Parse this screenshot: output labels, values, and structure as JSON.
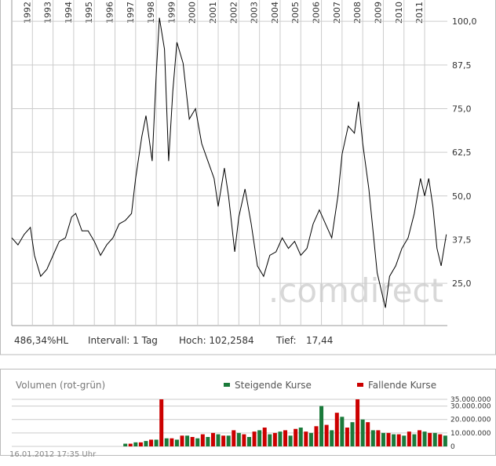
{
  "chart_data": [
    {
      "type": "line",
      "watermark": ".comdirect",
      "annotations": [
        "486,34%HL",
        "Intervall: 1 Tag",
        "Hoch: 102,2584",
        "Tief:",
        "17,44"
      ],
      "x": [
        1991.0,
        1991.3,
        1991.6,
        1991.9,
        1992.1,
        1992.4,
        1992.7,
        1993.0,
        1993.3,
        1993.6,
        1993.9,
        1994.1,
        1994.4,
        1994.7,
        1995.0,
        1995.3,
        1995.6,
        1995.9,
        1996.2,
        1996.5,
        1996.8,
        1997.0,
        1997.3,
        1997.5,
        1997.8,
        1998.0,
        1998.15,
        1998.4,
        1998.6,
        1998.8,
        1999.0,
        1999.3,
        1999.6,
        1999.9,
        2000.2,
        2000.5,
        2000.8,
        2001.0,
        2001.3,
        2001.5,
        2001.8,
        2002.0,
        2002.3,
        2002.6,
        2002.9,
        2003.2,
        2003.5,
        2003.8,
        2004.1,
        2004.4,
        2004.7,
        2005.0,
        2005.3,
        2005.6,
        2005.9,
        2006.2,
        2006.5,
        2006.8,
        2007.0,
        2007.3,
        2007.6,
        2007.8,
        2008.0,
        2008.3,
        2008.5,
        2008.7,
        2008.9,
        2009.1,
        2009.3,
        2009.6,
        2009.9,
        2010.2,
        2010.5,
        2010.8,
        2011.0,
        2011.2,
        2011.4,
        2011.6,
        2011.8,
        2012.05
      ],
      "series": [
        {
          "color": "#000000",
          "values": [
            38,
            36,
            39,
            41,
            33,
            27,
            29,
            33,
            37,
            38,
            44,
            45,
            40,
            40,
            37,
            33,
            36,
            38,
            42,
            43,
            45,
            55,
            67,
            73,
            60,
            85,
            101,
            92,
            60,
            80,
            94,
            88,
            72,
            75,
            65,
            60,
            55,
            47,
            58,
            50,
            34,
            44,
            52,
            42,
            30,
            27,
            33,
            34,
            38,
            35,
            37,
            33,
            35,
            42,
            46,
            42,
            38,
            50,
            62,
            70,
            68,
            77,
            65,
            52,
            40,
            28,
            23,
            18,
            27,
            30,
            35,
            38,
            45,
            55,
            50,
            55,
            47,
            35,
            30,
            39
          ]
        }
      ],
      "xlim": [
        1991.0,
        2012.1
      ],
      "xticks": [
        1992,
        1993,
        1994,
        1995,
        1996,
        1997,
        1998,
        1999,
        2000,
        2001,
        2002,
        2003,
        2004,
        2005,
        2006,
        2007,
        2008,
        2009,
        2010,
        2011
      ],
      "ylim": [
        12.9,
        106.1
      ],
      "yticks": [
        {
          "value": 25,
          "label": "25,0"
        },
        {
          "value": 37.5,
          "label": "37,5"
        },
        {
          "value": 50,
          "label": "50,0"
        },
        {
          "value": 62.5,
          "label": "62,5"
        },
        {
          "value": 75,
          "label": "75,0"
        },
        {
          "value": 87.5,
          "label": "87,5"
        },
        {
          "value": 100,
          "label": "100,0"
        }
      ],
      "grid": true
    },
    {
      "type": "bar",
      "title": "Volumen (rot-grün)",
      "footer": "16.01.2012 17:35 Uhr",
      "series": [
        {
          "name": "Steigende Kurse",
          "color": "#1a7a3a",
          "x": [
            1996.5,
            1997,
            1997.5,
            1998,
            1998.5,
            1999,
            1999.5,
            2000,
            2000.5,
            2001,
            2001.5,
            2002,
            2002.5,
            2003,
            2003.5,
            2004,
            2004.5,
            2005,
            2005.5,
            2006,
            2006.5,
            2007,
            2007.5,
            2008,
            2008.5,
            2009,
            2009.5,
            2010,
            2010.5,
            2011,
            2011.5,
            2012
          ],
          "values": [
            2000000,
            3000000,
            4000000,
            5000000,
            6000000,
            5000000,
            8000000,
            6000000,
            7000000,
            9000000,
            8000000,
            10000000,
            7000000,
            12000000,
            9000000,
            11000000,
            8000000,
            14000000,
            10000000,
            30000000,
            12000000,
            22000000,
            18000000,
            20000000,
            12000000,
            10000000,
            9000000,
            8000000,
            9000000,
            11000000,
            10000000,
            8000000
          ]
        },
        {
          "name": "Fallende Kurse",
          "color": "#cc0000",
          "x": [
            1996.75,
            1997.25,
            1997.75,
            1998.25,
            1998.75,
            1999.25,
            1999.75,
            2000.25,
            2000.75,
            2001.25,
            2001.75,
            2002.25,
            2002.75,
            2003.25,
            2003.75,
            2004.25,
            2004.75,
            2005.25,
            2005.75,
            2006.25,
            2006.75,
            2007.25,
            2007.75,
            2008.25,
            2008.75,
            2009.25,
            2009.75,
            2010.25,
            2010.75,
            2011.25,
            2011.75
          ],
          "values": [
            2000000,
            3000000,
            5000000,
            35000000,
            6000000,
            8000000,
            7000000,
            9000000,
            10000000,
            8000000,
            12000000,
            9000000,
            11000000,
            14000000,
            10000000,
            12000000,
            13000000,
            11000000,
            15000000,
            16000000,
            25000000,
            14000000,
            35000000,
            18000000,
            12000000,
            10000000,
            9000000,
            11000000,
            12000000,
            10000000,
            9000000
          ]
        }
      ],
      "xlim": [
        1991.0,
        2012.1
      ],
      "ylim": [
        0,
        35000000
      ],
      "yticks": [
        {
          "value": 0,
          "label": "0"
        },
        {
          "value": 10000000,
          "label": "10.000.000"
        },
        {
          "value": 20000000,
          "label": "20.000.000"
        },
        {
          "value": 30000000,
          "label": "30.000.000"
        },
        {
          "value": 35000000,
          "label": "35.000.000"
        }
      ],
      "grid": true
    }
  ]
}
